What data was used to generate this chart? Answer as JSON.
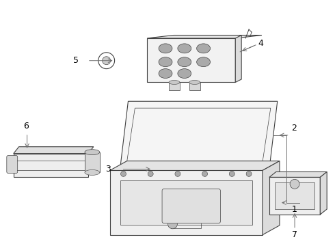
{
  "background_color": "#ffffff",
  "line_color": "#404040",
  "label_color": "#000000",
  "label_line_color": "#707070",
  "lw": 0.8
}
